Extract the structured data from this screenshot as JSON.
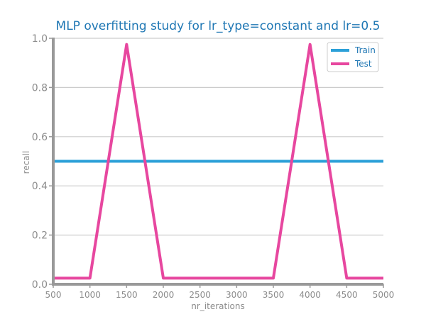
{
  "chart_data": {
    "type": "line",
    "title": "MLP overfitting study for lr_type=constant and lr=0.5",
    "xlabel": "nr_iterations",
    "ylabel": "recall",
    "x": [
      500,
      1000,
      1500,
      2000,
      2500,
      3000,
      3500,
      4000,
      4500,
      5000
    ],
    "xticks": [
      500,
      1000,
      1500,
      2000,
      2500,
      3000,
      3500,
      4000,
      4500,
      5000
    ],
    "yticks": [
      0.0,
      0.2,
      0.4,
      0.6,
      0.8,
      1.0
    ],
    "xlim": [
      500,
      5000
    ],
    "ylim": [
      0,
      1.0
    ],
    "grid": "horizontal",
    "legend_position": "top-right",
    "series": [
      {
        "name": "Train",
        "color": "#2ca0d8",
        "values": [
          0.5,
          0.5,
          0.5,
          0.5,
          0.5,
          0.5,
          0.5,
          0.5,
          0.5,
          0.5
        ]
      },
      {
        "name": "Test",
        "color": "#e7479f",
        "values": [
          0.025,
          0.025,
          0.975,
          0.025,
          0.025,
          0.025,
          0.025,
          0.975,
          0.025,
          0.025
        ]
      }
    ]
  }
}
